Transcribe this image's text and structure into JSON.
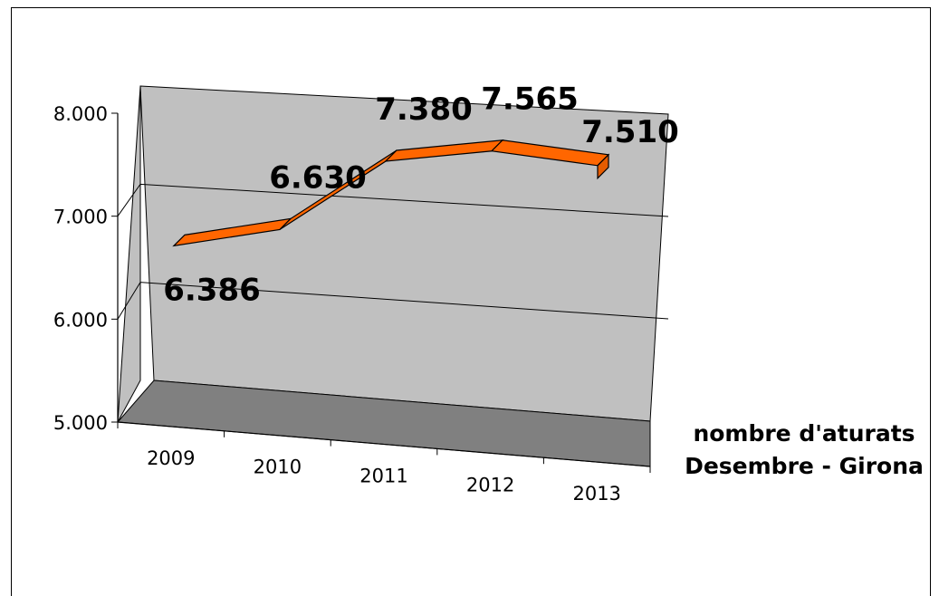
{
  "chart_data": {
    "type": "line",
    "categories": [
      "2009",
      "2010",
      "2011",
      "2012",
      "2013"
    ],
    "series": [
      {
        "name": "nombre d'aturats Desembre - Girona",
        "values": [
          6386,
          6630,
          7380,
          7565,
          7510
        ],
        "color": "#FF6600"
      }
    ],
    "data_labels": [
      "6.386",
      "6.630",
      "7.380",
      "7.565",
      "7.510"
    ],
    "ylim": [
      5000,
      8000
    ],
    "y_ticks": [
      5000,
      6000,
      7000,
      8000
    ],
    "y_tick_labels": [
      "5.000",
      "6.000",
      "7.000",
      "8.000"
    ],
    "legend": {
      "lines": [
        "nombre d'aturats",
        "Desembre - Girona"
      ],
      "placement": "right"
    },
    "grid": true,
    "style": "3d",
    "wall_color": "#C0C0C0",
    "floor_color": "#808080"
  }
}
